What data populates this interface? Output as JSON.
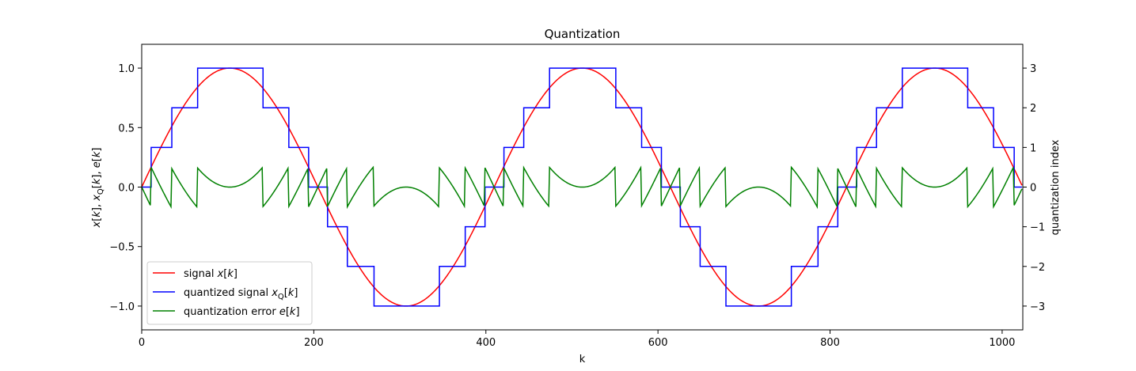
{
  "chart_data": {
    "type": "line",
    "title": "Quantization",
    "xlabel": "k",
    "ylabel": "x[k], x_Q[k], e[k]",
    "ylabel_right": "quantization index",
    "xlim": [
      0,
      1024
    ],
    "ylim": [
      -1.2,
      1.2
    ],
    "ylim_right": [
      -3.6,
      3.6
    ],
    "x_ticks": [
      0,
      200,
      400,
      600,
      800,
      1000
    ],
    "x_tick_labels": [
      "0",
      "200",
      "400",
      "600",
      "800",
      "1000"
    ],
    "y_ticks": [
      -1.0,
      -0.5,
      0.0,
      0.5,
      1.0
    ],
    "y_tick_labels": [
      "−1.0",
      "−0.5",
      "0.0",
      "0.5",
      "1.0"
    ],
    "y_right_ticks": [
      -3,
      -2,
      -1,
      0,
      1,
      2,
      3
    ],
    "y_right_tick_labels": [
      "−3",
      "−2",
      "−1",
      "0",
      "1",
      "2",
      "3"
    ],
    "grid": false,
    "legend_position": "lower-left",
    "signal": {
      "form": "sine",
      "amplitude": 1.0,
      "period_samples": 409.6,
      "num_samples": 1024,
      "quantizer_step": 0.3333
    },
    "series": [
      {
        "name": "signal x[k]",
        "role": "signal",
        "color": "#ff0000"
      },
      {
        "name": "quantized signal x_Q[k]",
        "role": "quantized",
        "color": "#0000ff"
      },
      {
        "name": "quantization error e[k]",
        "role": "error",
        "color": "#008000"
      }
    ]
  }
}
